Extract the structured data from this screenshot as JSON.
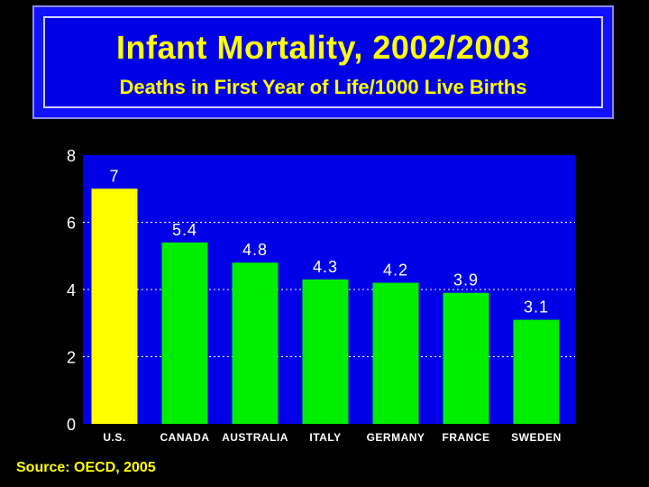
{
  "header": {
    "title": "Infant Mortality, 2002/2003",
    "subtitle": "Deaths in First Year of Life/1000 Live Births"
  },
  "footer": {
    "source": "Source: OECD, 2005"
  },
  "colors": {
    "plot_bg": "#0000e6",
    "highlight_bar": "#ffff00",
    "bar": "#00ee00",
    "text": "#ffffff",
    "title_text": "#ffff00"
  },
  "chart_data": {
    "type": "bar",
    "categories": [
      "U.S.",
      "CANADA",
      "AUSTRALIA",
      "ITALY",
      "GERMANY",
      "FRANCE",
      "SWEDEN"
    ],
    "values": [
      7,
      5.4,
      4.8,
      4.3,
      4.2,
      3.9,
      3.1
    ],
    "data_labels": [
      "7",
      "5.4",
      "4.8",
      "4.3",
      "4.2",
      "3.9",
      "3.1"
    ],
    "highlight_index": 0,
    "ylim": [
      0,
      8
    ],
    "yticks": [
      0,
      2,
      4,
      6,
      8
    ],
    "grid": true,
    "legend": false
  }
}
